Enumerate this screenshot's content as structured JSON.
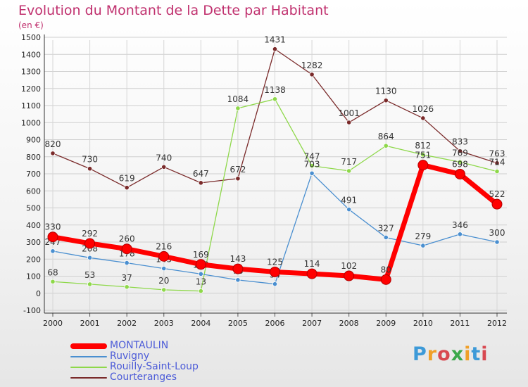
{
  "title": "Evolution du Montant de la Dette par Habitant",
  "unit": "(en €)",
  "logo": "Proxiti",
  "chart_data": {
    "type": "line",
    "title": "Evolution du Montant de la Dette par Habitant",
    "xlabel": "",
    "ylabel": "(en €)",
    "x": [
      2000,
      2001,
      2002,
      2003,
      2004,
      2005,
      2006,
      2007,
      2008,
      2009,
      2010,
      2011,
      2012
    ],
    "ylim": [
      -100,
      1500
    ],
    "yticks": [
      -100,
      0,
      100,
      200,
      300,
      400,
      500,
      600,
      700,
      800,
      900,
      1000,
      1100,
      1200,
      1300,
      1400,
      1500
    ],
    "grid": true,
    "legend": "bottom-left",
    "series": [
      {
        "name": "MONTAULIN",
        "color": "#ff0000",
        "values": [
          330,
          292,
          260,
          216,
          169,
          143,
          125,
          114,
          102,
          80,
          751,
          698,
          522
        ],
        "labels": [
          "330",
          "292",
          "260",
          "216",
          "169",
          "143",
          "125",
          "114",
          "102",
          "80",
          "751",
          "698",
          "522"
        ]
      },
      {
        "name": "Ruvigny",
        "color": "#4a8fd0",
        "values": [
          247,
          208,
          178,
          145,
          113,
          78,
          54,
          703,
          491,
          327,
          279,
          346,
          300
        ],
        "labels": [
          "247",
          "208",
          "178",
          "145",
          "113",
          "78",
          "54",
          "703",
          "491",
          "327",
          "279",
          "346",
          "300"
        ]
      },
      {
        "name": "Rouilly-Saint-Loup",
        "color": "#8ed84a",
        "values": [
          68,
          53,
          37,
          20,
          13,
          1084,
          1138,
          747,
          717,
          864,
          812,
          769,
          714
        ],
        "labels": [
          "68",
          "53",
          "37",
          "20",
          "13",
          "1084",
          "1138",
          "747",
          "717",
          "864",
          "812",
          "769",
          "714"
        ]
      },
      {
        "name": "Courteranges",
        "color": "#7a2a2a",
        "values": [
          820,
          730,
          619,
          740,
          647,
          672,
          1431,
          1282,
          1001,
          1130,
          1026,
          833,
          763
        ],
        "labels": [
          "820",
          "730",
          "619",
          "740",
          "647",
          "672",
          "1431",
          "1282",
          "1001",
          "1130",
          "1026",
          "833",
          "763"
        ]
      }
    ]
  }
}
